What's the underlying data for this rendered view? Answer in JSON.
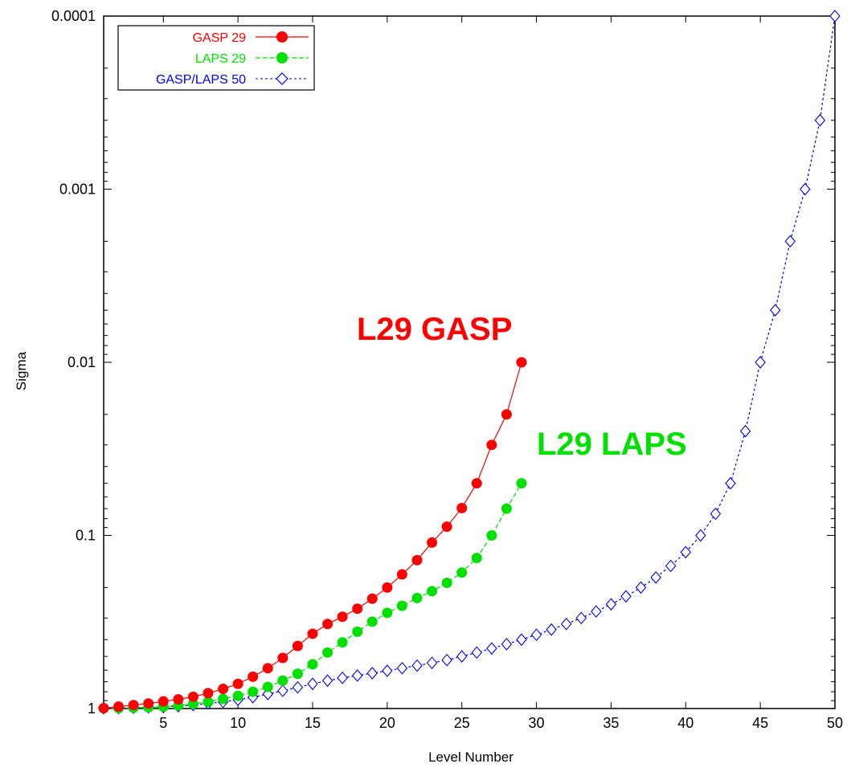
{
  "chart_data": {
    "type": "line",
    "title": "",
    "xlabel": "Level Number",
    "ylabel": "Sigma",
    "xlim": [
      1,
      50
    ],
    "ylim": [
      0.0001,
      1
    ],
    "y_scale": "log",
    "y_reversed": true,
    "x_ticks": [
      5,
      10,
      15,
      20,
      25,
      30,
      35,
      40,
      45,
      50
    ],
    "y_ticks": [
      {
        "value": 1,
        "label": "1"
      },
      {
        "value": 0.1,
        "label": "0.1"
      },
      {
        "value": 0.01,
        "label": "0.01"
      },
      {
        "value": 0.001,
        "label": "0.001"
      },
      {
        "value": 0.0001,
        "label": "0.0001"
      }
    ],
    "grid": false,
    "legend_position": "top-left",
    "series": [
      {
        "name": "GASP 29",
        "color": "#ff0000",
        "marker": "filled-circle",
        "line": "solid",
        "x": [
          1,
          2,
          3,
          4,
          5,
          6,
          7,
          8,
          9,
          10,
          11,
          12,
          13,
          14,
          15,
          16,
          17,
          18,
          19,
          20,
          21,
          22,
          23,
          24,
          25,
          26,
          27,
          28,
          29
        ],
        "values": [
          0.995,
          0.975,
          0.955,
          0.935,
          0.91,
          0.885,
          0.855,
          0.815,
          0.77,
          0.72,
          0.655,
          0.585,
          0.51,
          0.435,
          0.37,
          0.325,
          0.295,
          0.265,
          0.232,
          0.2,
          0.168,
          0.139,
          0.11,
          0.089,
          0.0695,
          0.05,
          0.03,
          0.02,
          0.01
        ]
      },
      {
        "name": "LAPS 29",
        "color": "#00e000",
        "marker": "filled-circle",
        "line": "dashed",
        "x": [
          1,
          2,
          3,
          4,
          5,
          6,
          7,
          8,
          9,
          10,
          11,
          12,
          13,
          14,
          15,
          16,
          17,
          18,
          19,
          20,
          21,
          22,
          23,
          24,
          25,
          26,
          27,
          28,
          29
        ],
        "values": [
          0.998,
          0.995,
          0.99,
          0.985,
          0.975,
          0.96,
          0.94,
          0.915,
          0.88,
          0.845,
          0.8,
          0.75,
          0.69,
          0.63,
          0.555,
          0.475,
          0.415,
          0.36,
          0.315,
          0.28,
          0.255,
          0.23,
          0.21,
          0.188,
          0.164,
          0.135,
          0.1,
          0.07,
          0.05
        ]
      },
      {
        "name": "GASP/LAPS 50",
        "color": "#0000ff",
        "marker": "open-diamond",
        "line": "dotted",
        "x": [
          1,
          2,
          3,
          4,
          5,
          6,
          7,
          8,
          9,
          10,
          11,
          12,
          13,
          14,
          15,
          16,
          17,
          18,
          19,
          20,
          21,
          22,
          23,
          24,
          25,
          26,
          27,
          28,
          29,
          30,
          31,
          32,
          33,
          34,
          35,
          36,
          37,
          38,
          39,
          40,
          41,
          42,
          43,
          44,
          45,
          46,
          47,
          48,
          49,
          50
        ],
        "values": [
          0.998,
          0.995,
          0.99,
          0.985,
          0.98,
          0.97,
          0.955,
          0.935,
          0.915,
          0.89,
          0.86,
          0.825,
          0.79,
          0.755,
          0.72,
          0.69,
          0.665,
          0.645,
          0.625,
          0.605,
          0.585,
          0.565,
          0.545,
          0.525,
          0.5,
          0.475,
          0.45,
          0.425,
          0.4,
          0.375,
          0.35,
          0.325,
          0.3,
          0.275,
          0.25,
          0.225,
          0.2,
          0.175,
          0.15,
          0.125,
          0.1,
          0.075,
          0.05,
          0.025,
          0.01,
          0.005,
          0.002,
          0.001,
          0.0004,
          0.0001
        ]
      }
    ],
    "annotations": [
      {
        "text": "L29 GASP",
        "color": "#ff0000"
      },
      {
        "text": "L29 LAPS",
        "color": "#00e000"
      }
    ]
  }
}
